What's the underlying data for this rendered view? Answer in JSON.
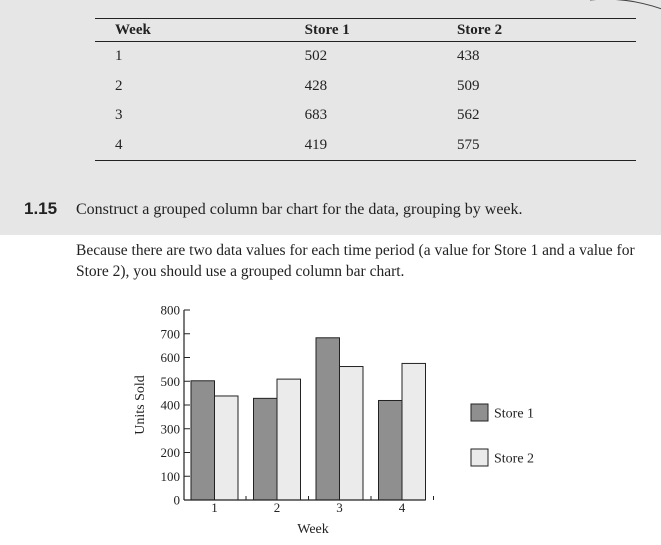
{
  "table": {
    "headers": [
      "Week",
      "Store 1",
      "Store 2"
    ],
    "rows": [
      [
        "1",
        "502",
        "438"
      ],
      [
        "2",
        "428",
        "509"
      ],
      [
        "3",
        "683",
        "562"
      ],
      [
        "4",
        "419",
        "575"
      ]
    ]
  },
  "problem": {
    "number": "1.15",
    "text": "Construct a grouped column bar chart for the data, grouping by week."
  },
  "answer": {
    "text": "Because there are two data values for each time period (a value for Store 1 and a value for Store 2), you should use a grouped column bar chart."
  },
  "colors": {
    "store1": "#8f8f8f",
    "store2": "#ebebeb",
    "shaded_band": "#e6e6e6"
  },
  "chart_data": {
    "type": "bar",
    "categories": [
      "1",
      "2",
      "3",
      "4"
    ],
    "series": [
      {
        "name": "Store 1",
        "values": [
          502,
          428,
          683,
          419
        ]
      },
      {
        "name": "Store 2",
        "values": [
          438,
          509,
          562,
          575
        ]
      }
    ],
    "title": "",
    "xlabel": "Week",
    "ylabel": "Units Sold",
    "ylim": [
      0,
      800
    ],
    "yticks": [
      "0",
      "100",
      "200",
      "300",
      "400",
      "500",
      "600",
      "700",
      "800"
    ],
    "legend": "right",
    "grid": false
  }
}
